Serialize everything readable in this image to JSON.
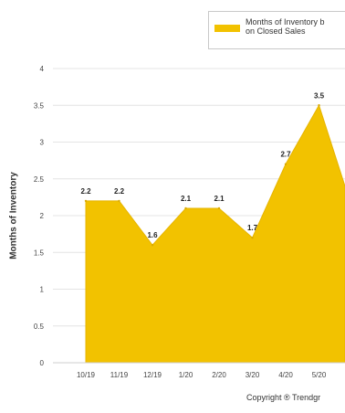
{
  "chart_data": {
    "type": "area",
    "categories": [
      "10/19",
      "11/19",
      "12/19",
      "1/20",
      "2/20",
      "3/20",
      "4/20",
      "5/20"
    ],
    "series": [
      {
        "name": "Months of Inventory based on Closed Sales",
        "values": [
          2.2,
          2.2,
          1.6,
          2.1,
          2.1,
          1.7,
          2.7,
          3.5
        ],
        "data_labels": [
          "2.2",
          "2.2",
          "1.6",
          "2.1",
          "2.1",
          "1.7",
          "2.7",
          "3.5"
        ],
        "color": "#f2c200"
      }
    ],
    "ylabel": "Months of Inventory",
    "ylim": [
      0,
      4
    ],
    "yticks": [
      "0",
      "0.5",
      "1",
      "1.5",
      "2",
      "2.5",
      "3",
      "3.5",
      "4"
    ],
    "ytick_values": [
      0,
      0.5,
      1,
      1.5,
      2,
      2.5,
      3,
      3.5,
      4
    ],
    "continues_past_edge_value": 2.4,
    "grid": true,
    "legend_position": "top-right",
    "legend_text": "Months of Inventory b\non Closed Sales"
  },
  "footer": {
    "copyright": "Copyright ® Trendgr"
  }
}
